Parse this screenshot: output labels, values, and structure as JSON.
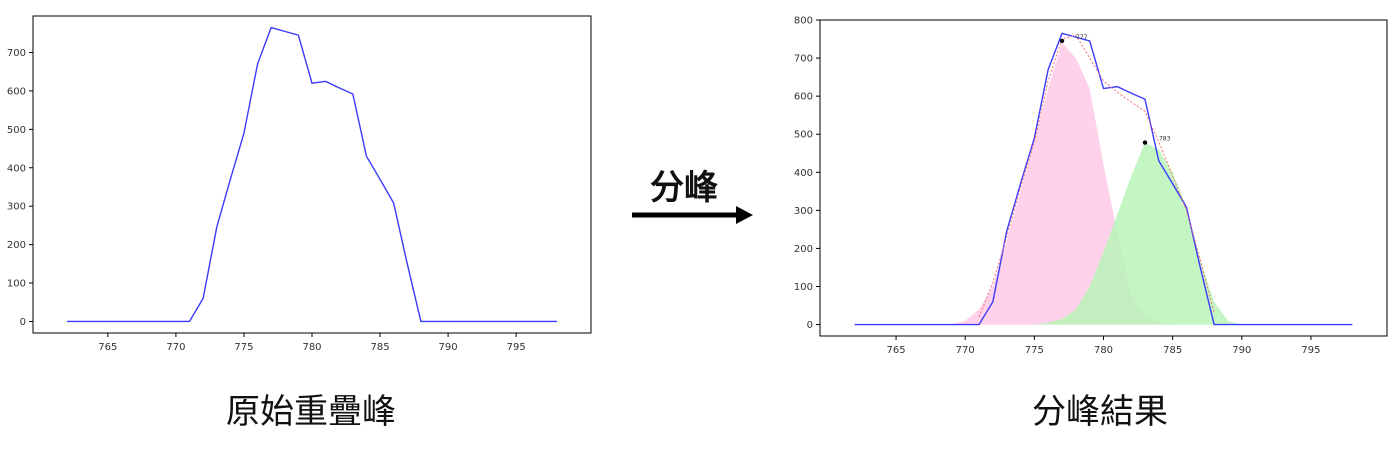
{
  "captions": {
    "left": "原始重疊峰",
    "right": "分峰結果",
    "arrow": "分峰"
  },
  "chart_data": [
    {
      "type": "line",
      "panel": "left",
      "xlim": [
        759.5,
        800.5
      ],
      "ylim": [
        -30,
        795
      ],
      "xticks": [
        765,
        770,
        775,
        780,
        785,
        790,
        795
      ],
      "yticks": [
        0,
        100,
        200,
        300,
        400,
        500,
        600,
        700
      ],
      "grid": false,
      "series": [
        {
          "color": "#3b3bff",
          "x": [
            762,
            763,
            764,
            765,
            766,
            767,
            768,
            769,
            770,
            771,
            772,
            773,
            774,
            775,
            776,
            777,
            778,
            779,
            780,
            781,
            782,
            783,
            784,
            785,
            786,
            787,
            788,
            789,
            790,
            791,
            792,
            793,
            794,
            795,
            796,
            797,
            798
          ],
          "y": [
            0,
            0,
            0,
            0,
            0,
            0,
            0,
            0,
            0,
            0,
            60,
            245,
            370,
            490,
            670,
            765,
            755,
            745,
            620,
            625,
            608,
            592,
            430,
            370,
            308,
            150,
            0,
            0,
            0,
            0,
            0,
            0,
            0,
            0,
            0,
            0,
            0
          ]
        }
      ]
    },
    {
      "type": "line",
      "panel": "right",
      "xlim": [
        759.5,
        800.5
      ],
      "ylim": [
        -30,
        800
      ],
      "xticks": [
        765,
        770,
        775,
        780,
        785,
        790,
        795
      ],
      "yticks": [
        0,
        100,
        200,
        300,
        400,
        500,
        600,
        700,
        800
      ],
      "grid": false,
      "series": [
        {
          "color": "#3b3bff",
          "x": [
            762,
            763,
            764,
            765,
            766,
            767,
            768,
            769,
            770,
            771,
            772,
            773,
            774,
            775,
            776,
            777,
            778,
            779,
            780,
            781,
            782,
            783,
            784,
            785,
            786,
            787,
            788,
            789,
            790,
            791,
            792,
            793,
            794,
            795,
            796,
            797,
            798
          ],
          "y": [
            0,
            0,
            0,
            0,
            0,
            0,
            0,
            0,
            0,
            0,
            60,
            245,
            370,
            490,
            670,
            765,
            755,
            745,
            620,
            625,
            608,
            592,
            430,
            370,
            308,
            150,
            0,
            0,
            0,
            0,
            0,
            0,
            0,
            0,
            0,
            0,
            0
          ]
        },
        {
          "color": "#ff6b6b",
          "style": "dotted",
          "x": [
            771,
            772,
            773,
            774,
            775,
            776,
            777,
            778,
            779,
            780,
            781,
            782,
            783,
            784,
            785,
            786,
            787,
            788
          ],
          "y": [
            20,
            110,
            230,
            360,
            480,
            640,
            750,
            760,
            700,
            640,
            610,
            585,
            560,
            480,
            390,
            300,
            170,
            30
          ]
        }
      ],
      "areas": [
        {
          "color": "#ffc9e6",
          "x": [
            769,
            770,
            771,
            772,
            773,
            774,
            775,
            776,
            777,
            778,
            779,
            780,
            781,
            782,
            783,
            784,
            785
          ],
          "y": [
            0,
            10,
            40,
            100,
            220,
            350,
            480,
            620,
            740,
            700,
            620,
            420,
            240,
            80,
            20,
            5,
            0
          ]
        },
        {
          "color": "#b9f5b9",
          "x": [
            775,
            776,
            777,
            778,
            779,
            780,
            781,
            782,
            783,
            784,
            785,
            786,
            787,
            788,
            789,
            790
          ],
          "y": [
            0,
            5,
            15,
            40,
            100,
            190,
            290,
            390,
            478,
            460,
            400,
            310,
            170,
            60,
            10,
            0
          ]
        }
      ],
      "peaks": [
        {
          "x": 777,
          "y": 745,
          "label": "777"
        },
        {
          "x": 783,
          "y": 478,
          "label": "783"
        }
      ]
    }
  ]
}
